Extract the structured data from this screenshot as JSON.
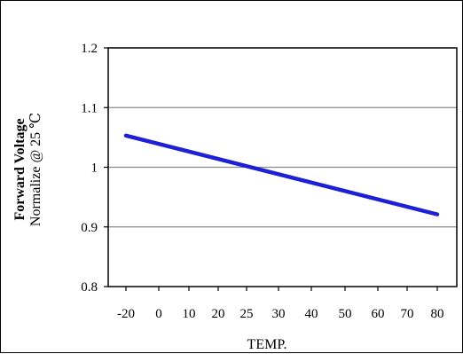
{
  "chart_data": {
    "type": "line",
    "title": "",
    "xlabel": "TEMP.",
    "ylabel": "Forward Voltage",
    "ylabel_sub": "Normalize @ 25 ℃",
    "x_ticks": [
      "-20",
      "0",
      "10",
      "20",
      "25",
      "30",
      "40",
      "50",
      "60",
      "70",
      "80"
    ],
    "y_ticks": [
      "0.8",
      "0.9",
      "1",
      "1.1",
      "1.2"
    ],
    "ylim": [
      0.8,
      1.2
    ],
    "grid": "horizontal",
    "line_color": "#1f1fd6",
    "series": [
      {
        "x": [
          "-20",
          "80"
        ],
        "y": [
          1.053,
          0.921
        ]
      }
    ]
  }
}
